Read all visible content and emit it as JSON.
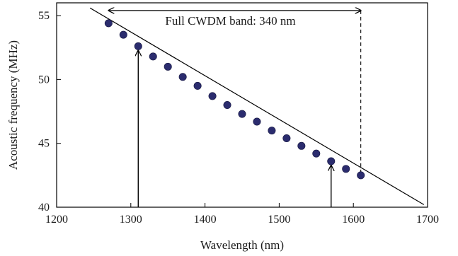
{
  "chart_data": {
    "type": "scatter",
    "xlabel": "Wavelength (nm)",
    "ylabel": "Acoustic frequency (MHz)",
    "xlim": [
      1200,
      1700
    ],
    "ylim": [
      40,
      56
    ],
    "x_ticks": [
      1200,
      1300,
      1400,
      1500,
      1600,
      1700
    ],
    "x_tick_labels": [
      "1200",
      "1300",
      "1400",
      "1500",
      "1600",
      "1700"
    ],
    "y_ticks": [
      40,
      45,
      50,
      55
    ],
    "y_tick_labels": [
      "40",
      "45",
      "50",
      "55"
    ],
    "grid": false,
    "legend": "none",
    "series": [
      {
        "type": "scatter",
        "x": [
          1270,
          1290,
          1310,
          1330,
          1350,
          1370,
          1390,
          1410,
          1430,
          1450,
          1470,
          1490,
          1510,
          1530,
          1550,
          1570,
          1590,
          1610
        ],
        "y": [
          54.4,
          53.5,
          52.6,
          51.8,
          51.0,
          50.2,
          49.5,
          48.7,
          48.0,
          47.3,
          46.7,
          46.0,
          45.4,
          44.8,
          44.2,
          43.6,
          43.0,
          42.5
        ],
        "color": "#2b2c6e"
      },
      {
        "type": "line",
        "x": [
          1245,
          1695
        ],
        "y": [
          55.6,
          40.2
        ],
        "color": "#000000"
      }
    ],
    "annotations": {
      "band_label": "Full CWDM band: 340 nm",
      "band_start_x": 1270,
      "band_end_x": 1610,
      "band_y": 55.4,
      "up_arrows": [
        {
          "x": 1310,
          "y_from": 40,
          "y_to": 52.6
        },
        {
          "x": 1570,
          "y_from": 40,
          "y_to": 43.6
        }
      ],
      "dashed_line": {
        "x": 1610,
        "y_from": 55.4,
        "y_to": 42.5
      }
    }
  }
}
